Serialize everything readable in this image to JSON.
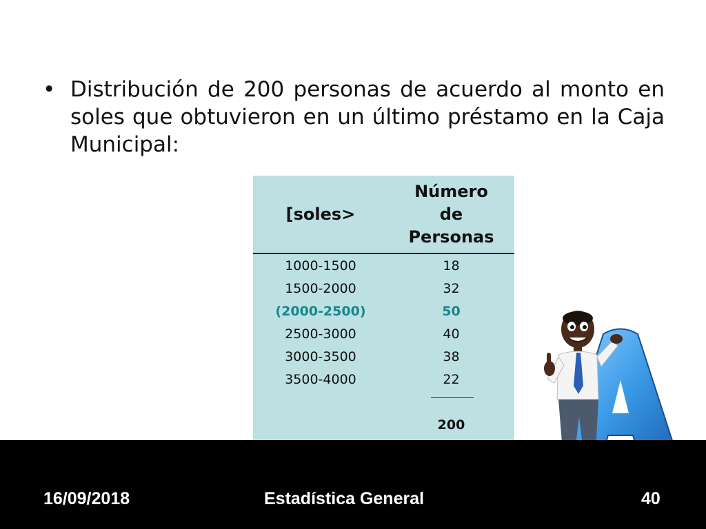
{
  "slide": {
    "bullet": "Distribución de 200 personas de acuerdo al monto en soles que obtuvieron en un último préstamo en la Caja Municipal:"
  },
  "table": {
    "headers": {
      "range": "[soles>",
      "count_line1": "Número",
      "count_line2": "de",
      "count_line3": "Personas"
    },
    "rows": [
      {
        "range": "1000-1500",
        "count": "18"
      },
      {
        "range": "1500-2000",
        "count": "32"
      },
      {
        "range": "(2000-2500)",
        "count": "50"
      },
      {
        "range": "2500-3000",
        "count": "40"
      },
      {
        "range": "3000-3500",
        "count": "38"
      },
      {
        "range": "3500-4000",
        "count": "22"
      }
    ],
    "total": "200",
    "highlight_color": "#17868c",
    "background_color": "#bde0e3"
  },
  "footer": {
    "date": "16/09/2018",
    "title": "Estadística General",
    "page": "40"
  },
  "clipart": {
    "icon": "cartoon-man-thumbs-up-with-letter-a-icon"
  }
}
